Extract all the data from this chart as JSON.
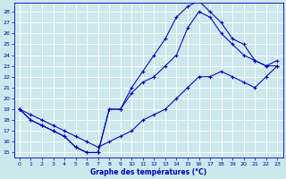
{
  "xlabel": "Graphe des températures (°C)",
  "bg_color": "#cce8ec",
  "grid_color": "#ffffff",
  "line_color": "#0000bb",
  "xlim_min": -0.5,
  "xlim_max": 23.5,
  "ylim_min": 14.5,
  "ylim_max": 28.8,
  "yticks": [
    15,
    16,
    17,
    18,
    19,
    20,
    21,
    22,
    23,
    24,
    25,
    26,
    27,
    28
  ],
  "xticks": [
    0,
    1,
    2,
    3,
    4,
    5,
    6,
    7,
    8,
    9,
    10,
    11,
    12,
    13,
    14,
    15,
    16,
    17,
    18,
    19,
    20,
    21,
    22,
    23
  ],
  "line_straight_x": [
    0,
    1,
    2,
    3,
    4,
    5,
    6,
    7,
    8,
    9,
    10,
    11,
    12,
    13,
    14,
    15,
    16,
    17,
    18,
    19,
    20,
    21,
    22,
    23
  ],
  "line_straight_y": [
    19,
    18.5,
    18,
    17.5,
    17,
    16.5,
    16,
    15.5,
    16,
    16.5,
    17,
    18,
    18.5,
    19,
    20,
    21,
    22,
    22,
    22.5,
    22,
    21.5,
    21,
    22,
    23
  ],
  "line_arch_x": [
    0,
    1,
    2,
    3,
    4,
    5,
    6,
    7,
    8,
    9,
    10,
    11,
    12,
    13,
    14,
    15,
    16,
    17,
    18,
    19,
    20,
    21,
    22,
    23
  ],
  "line_arch_y": [
    19,
    18,
    17.5,
    17,
    16.5,
    15.5,
    15,
    15,
    19,
    19,
    21,
    22.5,
    24,
    25.5,
    27.5,
    28.5,
    29,
    28,
    27,
    25.5,
    25,
    23.5,
    23,
    23.5
  ],
  "line_udip_x": [
    0,
    1,
    2,
    3,
    4,
    5,
    6,
    7,
    8,
    9,
    10,
    11,
    12,
    13,
    14,
    15,
    16,
    17,
    18,
    19,
    20,
    21,
    22,
    23
  ],
  "line_udip_y": [
    19,
    18,
    17.5,
    17,
    16.5,
    15.5,
    15,
    15,
    19,
    19,
    20.5,
    21.5,
    22,
    23,
    24,
    26.5,
    28,
    27.5,
    26,
    25,
    24,
    23.5,
    23,
    23
  ]
}
